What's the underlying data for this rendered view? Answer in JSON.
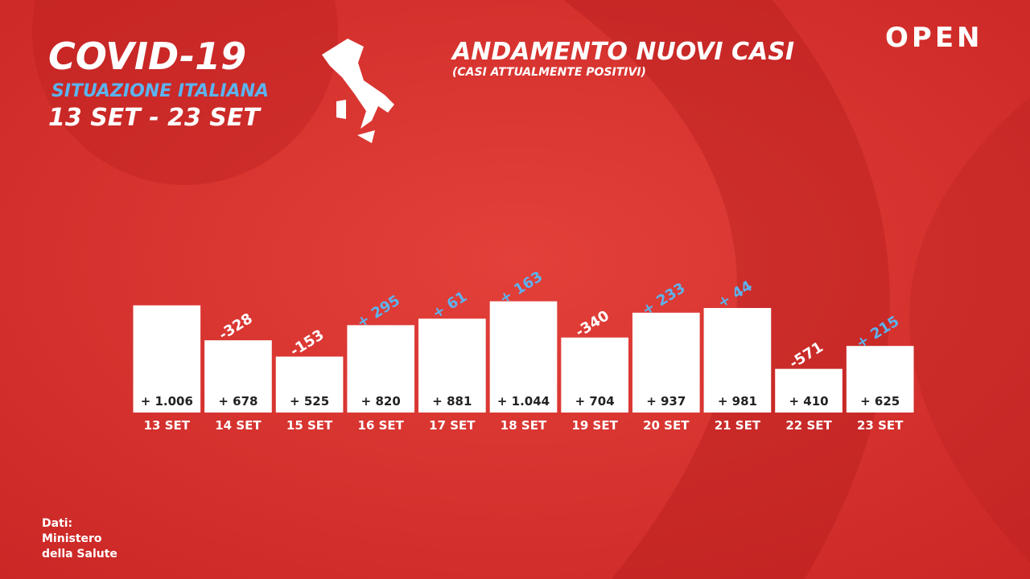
{
  "header": {
    "title": "COVID-19",
    "subtitle": "SITUAZIONE ITALIANA",
    "period": "13 SET - 23 SET"
  },
  "brand": "OPEN",
  "source": [
    "Dati:",
    "Ministero",
    "della Salute"
  ],
  "chart_data": {
    "type": "bar",
    "title": "ANDAMENTO NUOVI CASI",
    "subtitle": "(CASI ATTUALMENTE POSITIVI)",
    "categories": [
      "13 SET",
      "14 SET",
      "15 SET",
      "16 SET",
      "17 SET",
      "18 SET",
      "19 SET",
      "20 SET",
      "21 SET",
      "22 SET",
      "23 SET"
    ],
    "values": [
      1006,
      678,
      525,
      820,
      881,
      1044,
      704,
      937,
      981,
      410,
      625
    ],
    "value_labels": [
      "+ 1.006",
      "+ 678",
      "+ 525",
      "+ 820",
      "+ 881",
      "+ 1.044",
      "+ 704",
      "+ 937",
      "+ 981",
      "+ 410",
      "+ 625"
    ],
    "color": "#ffffff",
    "changes": {
      "values": [
        null,
        -328,
        -153,
        295,
        61,
        163,
        -340,
        233,
        44,
        -571,
        215
      ],
      "value_labels": [
        null,
        "-328",
        "-153",
        "+ 295",
        "+ 61",
        "+ 163",
        "-340",
        "+ 233",
        "+ 44",
        "-571",
        "+ 215"
      ],
      "positive_color": "#5cb3ef",
      "negative_color": "#ffffff"
    }
  }
}
